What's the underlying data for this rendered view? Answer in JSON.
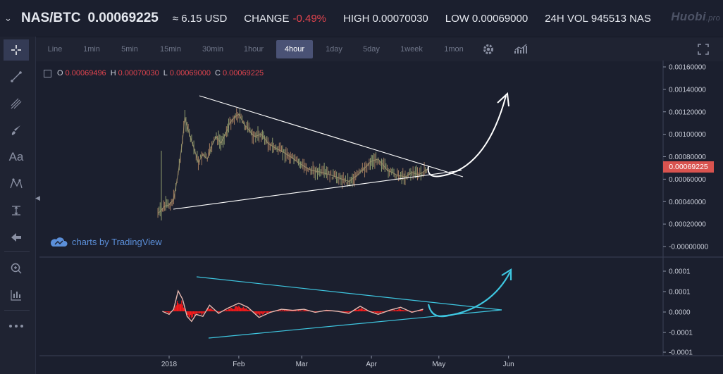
{
  "ticker": {
    "pair": "NAS/BTC",
    "price": "0.00069225",
    "usd": "≈ 6.15 USD",
    "change_label": "CHANGE",
    "change_value": "-0.49%",
    "high_label": "HIGH",
    "high_value": "0.00070030",
    "low_label": "LOW",
    "low_value": "0.00069000",
    "vol_label": "24H VOL",
    "vol_value": "945513 NAS",
    "brand": "Huobi",
    "brand_suffix": ".pro"
  },
  "timeframes": [
    "Line",
    "1min",
    "5min",
    "15min",
    "30min",
    "1hour",
    "4hour",
    "1day",
    "5day",
    "1week",
    "1mon"
  ],
  "active_timeframe": "4hour",
  "legend": {
    "o_label": "O",
    "o_value": "0.00069496",
    "h_label": "H",
    "h_value": "0.00070030",
    "l_label": "L",
    "l_value": "0.00069000",
    "c_label": "C",
    "c_value": "0.00069225"
  },
  "watermark": "charts by TradingView",
  "last_price_tag": "0.00069225",
  "colors": {
    "background": "#1b1f2e",
    "candle_up": "#8e9a6c",
    "candle_down": "#a07a5d",
    "negative": "#e0444e",
    "trendline": "#ffffff",
    "oscillator_trendline": "#3ec6e0",
    "histogram": "#ff1a1a",
    "active_tab": "#4a5275"
  },
  "tools": [
    "crosshair-icon",
    "trend-line-icon",
    "pitchfork-icon",
    "brush-icon",
    "text-icon",
    "pattern-icon",
    "measure-icon",
    "arrow-back-icon",
    "zoom-icon",
    "indicator-icon",
    "more-icon"
  ],
  "chart_data": [
    {
      "type": "line",
      "title": "",
      "price_axis_ticks": [
        "0.00160000",
        "0.00140000",
        "0.00120000",
        "0.00100000",
        "0.00080000",
        "0.00060000",
        "0.00040000",
        "0.00020000",
        "-0.00000000"
      ],
      "ylim": [
        0,
        0.0016
      ],
      "x_ticks": [
        "2018",
        "Feb",
        "Mar",
        "Apr",
        "May",
        "Jun"
      ],
      "x_tick_dates": [
        "2018-01-01",
        "2018-02-01",
        "2018-03-01",
        "2018-04-01",
        "2018-05-01",
        "2018-06-01"
      ],
      "series": [
        {
          "x": [
            "2017-12-27",
            "2017-12-28",
            "2017-12-30",
            "2018-01-01",
            "2018-01-03",
            "2018-01-05",
            "2018-01-07",
            "2018-01-08",
            "2018-01-10",
            "2018-01-12",
            "2018-01-14",
            "2018-01-16",
            "2018-01-18",
            "2018-01-20",
            "2018-01-22",
            "2018-01-24",
            "2018-01-26",
            "2018-01-28",
            "2018-01-30",
            "2018-02-01",
            "2018-02-03",
            "2018-02-05",
            "2018-02-08",
            "2018-02-11",
            "2018-02-14",
            "2018-02-17",
            "2018-02-20",
            "2018-02-24",
            "2018-02-28",
            "2018-03-05",
            "2018-03-10",
            "2018-03-15",
            "2018-03-19",
            "2018-03-22",
            "2018-03-26",
            "2018-03-29",
            "2018-04-01",
            "2018-04-04",
            "2018-04-08",
            "2018-04-12",
            "2018-04-16",
            "2018-04-19",
            "2018-04-22",
            "2018-04-26"
          ],
          "values": [
            0.0003,
            0.00031,
            0.00036,
            0.00037,
            0.00042,
            0.00065,
            0.00095,
            0.00115,
            0.001,
            0.00088,
            0.00075,
            0.00082,
            0.00078,
            0.0009,
            0.00098,
            0.00092,
            0.001,
            0.0011,
            0.00115,
            0.00118,
            0.0011,
            0.00105,
            0.00098,
            0.001,
            0.00092,
            0.00088,
            0.00085,
            0.0008,
            0.00074,
            0.00068,
            0.00066,
            0.00063,
            0.0006,
            0.00058,
            0.00064,
            0.0007,
            0.00076,
            0.00078,
            0.00068,
            0.00064,
            0.00062,
            0.00066,
            0.00064,
            0.00069
          ]
        }
      ]
    },
    {
      "type": "line",
      "title": "",
      "value_axis_ticks": [
        "0.0001",
        "0.0001",
        "0.0001",
        "0.0000",
        "-0.0001",
        "-0.0001"
      ],
      "ylim": [
        -0.0002,
        0.00022
      ],
      "x": [
        "2017-12-29",
        "2018-01-01",
        "2018-01-03",
        "2018-01-05",
        "2018-01-07",
        "2018-01-09",
        "2018-01-11",
        "2018-01-13",
        "2018-01-16",
        "2018-01-19",
        "2018-01-23",
        "2018-01-27",
        "2018-02-01",
        "2018-02-05",
        "2018-02-10",
        "2018-02-15",
        "2018-02-20",
        "2018-02-25",
        "2018-03-02",
        "2018-03-07",
        "2018-03-12",
        "2018-03-17",
        "2018-03-22",
        "2018-03-27",
        "2018-03-31",
        "2018-04-04",
        "2018-04-09",
        "2018-04-14",
        "2018-04-19",
        "2018-04-24"
      ],
      "series": [
        {
          "values": [
            0.0,
            -3e-05,
            2e-05,
            0.0002,
            0.00012,
            -5e-05,
            -0.0001,
            -3e-05,
            -5e-05,
            6e-05,
            -2e-05,
            3e-05,
            8e-05,
            4e-05,
            -6e-05,
            -1e-05,
            2e-05,
            1e-05,
            2e-05,
            -1e-05,
            1e-05,
            0.0,
            -2e-05,
            5e-05,
            0.0,
            -3e-05,
            1e-05,
            4e-05,
            -1e-05,
            2e-05
          ]
        }
      ]
    }
  ]
}
